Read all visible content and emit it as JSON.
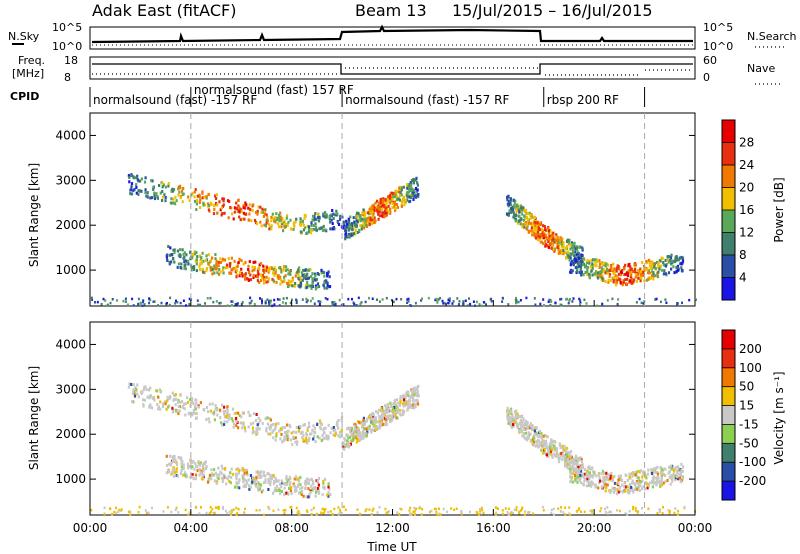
{
  "header": {
    "title": "Adak East (fitACF)",
    "beam": "Beam 13",
    "dates": "15/Jul/2015 – 16/Jul/2015"
  },
  "strips": {
    "nsky_label": "N.Sky",
    "nsky_ticks": [
      "10^5",
      "10^0"
    ],
    "nsearch_label": "N.Search",
    "nsearch_ticks": [
      "10^5",
      "10^0"
    ],
    "freq_label_1": "Freq.",
    "freq_label_2": "[MHz]",
    "freq_ticks": [
      "18",
      "8"
    ],
    "nave_label": "Nave",
    "nave_ticks": [
      "60",
      "0"
    ],
    "cpid_label": "CPID",
    "cpid_segments": [
      {
        "label": "normalsound (fast) -157 RF",
        "start_h": 0,
        "end_h": 4
      },
      {
        "label": "normalsound (fast) 157 RF",
        "start_h": 4,
        "end_h": 10
      },
      {
        "label": "normalsound (fast) -157 RF",
        "start_h": 10,
        "end_h": 18
      },
      {
        "label": "rbsp 200 RF",
        "start_h": 18,
        "end_h": 22
      }
    ]
  },
  "chart_data": [
    {
      "type": "heatmap",
      "name": "power",
      "ylabel": "Slant Range [km]",
      "yticks": [
        "1000",
        "2000",
        "3000",
        "4000"
      ],
      "ylim": [
        200,
        4500
      ],
      "xlim": [
        0,
        24
      ],
      "colorbar_label": "Power [dB]",
      "colorbar_ticks": [
        "4",
        "8",
        "12",
        "16",
        "20",
        "24",
        "28"
      ],
      "colorbar_colors": [
        "#1a14e6",
        "#2a4fa8",
        "#3f7f6c",
        "#5aa85a",
        "#f0c000",
        "#f07a00",
        "#e83010",
        "#e60000"
      ],
      "features": [
        {
          "desc": "band",
          "x": [
            1.5,
            3.5,
            6.0,
            8.0,
            10.0
          ],
          "y": [
            2950,
            2700,
            2350,
            2000,
            2200
          ]
        },
        {
          "desc": "band",
          "x": [
            3.0,
            5.5,
            7.5,
            9.5
          ],
          "y": [
            1350,
            1100,
            900,
            800
          ]
        },
        {
          "desc": "band",
          "x": [
            10.0,
            11.5,
            13.0
          ],
          "y": [
            1900,
            2400,
            2900
          ]
        },
        {
          "desc": "band",
          "x": [
            16.5,
            18.0,
            19.5
          ],
          "y": [
            2500,
            1800,
            1300
          ]
        },
        {
          "desc": "band",
          "x": [
            19.0,
            21.0,
            23.5
          ],
          "y": [
            1200,
            900,
            1200
          ]
        }
      ]
    },
    {
      "type": "heatmap",
      "name": "velocity",
      "ylabel": "Slant Range [km]",
      "yticks": [
        "1000",
        "2000",
        "3000",
        "4000"
      ],
      "ylim": [
        200,
        4500
      ],
      "xlim": [
        0,
        24
      ],
      "colorbar_label": "Velocity [m s⁻¹]",
      "colorbar_ticks": [
        "200",
        "100",
        "50",
        "15",
        "-15",
        "-50",
        "-100",
        "-200"
      ],
      "colorbar_colors": [
        "#1a14e6",
        "#2a4fa8",
        "#3f7f6c",
        "#8cd050",
        "#c8c8c8",
        "#f0c000",
        "#f07a00",
        "#e83010",
        "#e60000"
      ],
      "features": [
        {
          "desc": "band",
          "x": [
            1.5,
            3.5,
            6.0,
            8.0,
            10.0
          ],
          "y": [
            2950,
            2700,
            2350,
            2000,
            2200
          ]
        },
        {
          "desc": "band",
          "x": [
            3.0,
            5.5,
            7.5,
            9.5
          ],
          "y": [
            1350,
            1100,
            900,
            800
          ]
        },
        {
          "desc": "band",
          "x": [
            10.0,
            11.5,
            13.0
          ],
          "y": [
            1900,
            2400,
            2900
          ]
        },
        {
          "desc": "band",
          "x": [
            16.5,
            18.0,
            19.5
          ],
          "y": [
            2500,
            1800,
            1300
          ]
        },
        {
          "desc": "band",
          "x": [
            19.0,
            21.0,
            23.5
          ],
          "y": [
            1200,
            900,
            1200
          ]
        }
      ]
    }
  ],
  "xaxis": {
    "label": "Time UT",
    "ticks": [
      "00:00",
      "04:00",
      "08:00",
      "12:00",
      "16:00",
      "20:00",
      "00:00"
    ],
    "dashed_hours": [
      4,
      10,
      22
    ]
  }
}
